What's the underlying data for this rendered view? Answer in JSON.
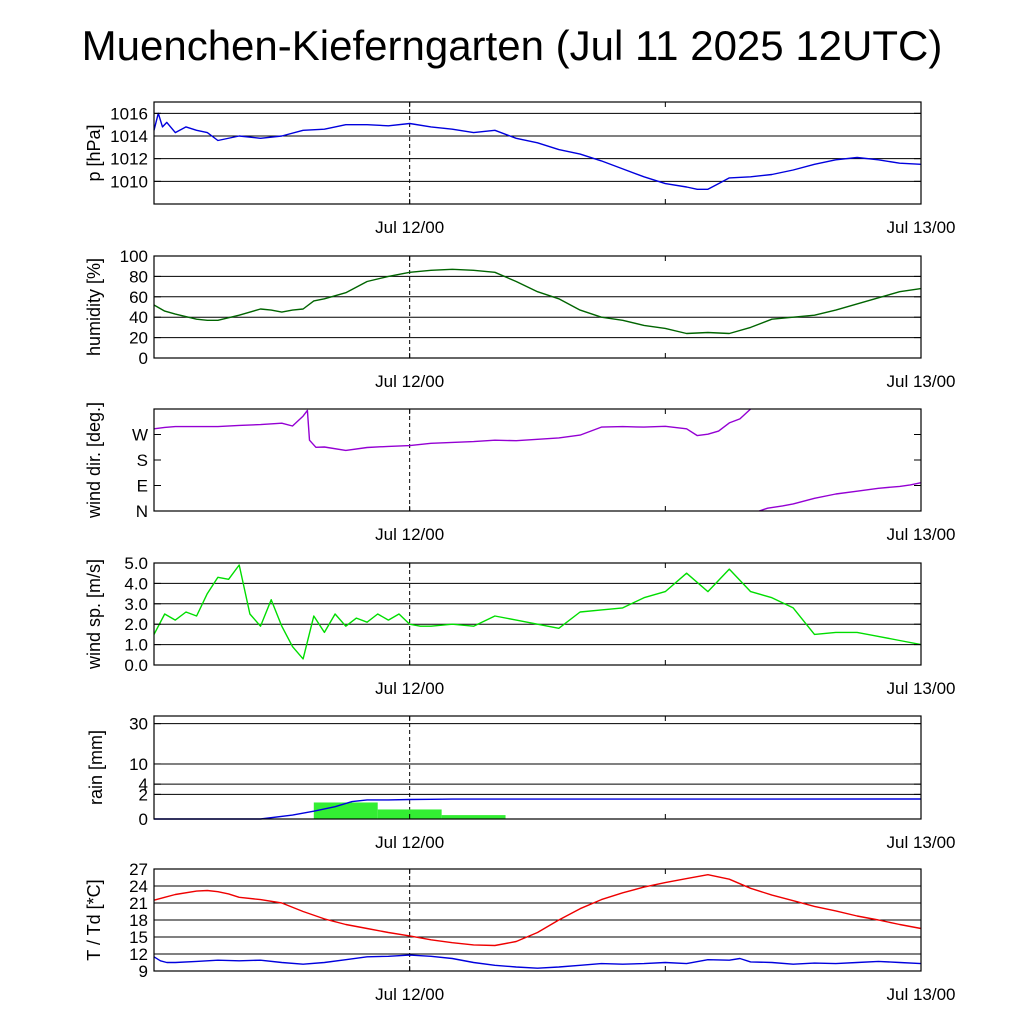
{
  "title": "Muenchen-Kieferngarten (Jul 11 2025 12UTC)",
  "x_tick_labels": [
    "Jul 12/00",
    "Jul 13/00"
  ],
  "x_axis": {
    "start": "Jul 11 12UTC",
    "end": "Jul 13 00UTC",
    "unit": "hours since Jul 11 12UTC",
    "range": [
      0,
      36
    ],
    "dashed_line_at": 12
  },
  "colors": {
    "pressure": "#0000dd",
    "humidity": "#006400",
    "wind_dir": "#9400d3",
    "wind_speed": "#00dd00",
    "rain_bar": "#33ee33",
    "rain_cum": "#0000dd",
    "temperature": "#ee0000",
    "dewpoint": "#0000dd"
  },
  "chart_data": [
    {
      "type": "line",
      "ylabel": "p [hPa]",
      "ylim": [
        1008,
        1017
      ],
      "yticks": [
        1010,
        1012,
        1014,
        1016
      ],
      "ytick_labels": [
        "1010",
        "1012",
        "1014",
        "1016"
      ],
      "grid": true,
      "series": [
        {
          "x": [
            0,
            0.2,
            0.4,
            0.6,
            1,
            1.5,
            2,
            2.5,
            3,
            4,
            5,
            6,
            7,
            8,
            9,
            10,
            11,
            12,
            13,
            14,
            15,
            16,
            17,
            18,
            19,
            20,
            21,
            22,
            23,
            24,
            25,
            25.5,
            26,
            26.5,
            27,
            28,
            29,
            30,
            31,
            32,
            33,
            34,
            35,
            36
          ],
          "y": [
            1014.5,
            1016,
            1014.8,
            1015.2,
            1014.3,
            1014.8,
            1014.5,
            1014.3,
            1013.6,
            1014,
            1013.8,
            1014,
            1014.5,
            1014.6,
            1015,
            1015,
            1014.9,
            1015.1,
            1014.8,
            1014.6,
            1014.3,
            1014.5,
            1013.8,
            1013.4,
            1012.8,
            1012.4,
            1011.8,
            1011.1,
            1010.4,
            1009.8,
            1009.5,
            1009.3,
            1009.3,
            1009.8,
            1010.3,
            1010.4,
            1010.6,
            1011,
            1011.5,
            1011.9,
            1012.1,
            1011.9,
            1011.6,
            1011.5
          ]
        }
      ]
    },
    {
      "type": "line",
      "ylabel": "humidity [%]",
      "ylim": [
        0,
        100
      ],
      "yticks": [
        0,
        20,
        40,
        60,
        80,
        100
      ],
      "ytick_labels": [
        "0",
        "20",
        "40",
        "60",
        "80",
        "100"
      ],
      "grid": true,
      "series": [
        {
          "x": [
            0,
            0.5,
            1,
            2,
            2.5,
            3,
            4,
            5,
            5.5,
            6,
            6.5,
            7,
            7.5,
            8,
            9,
            10,
            11,
            12,
            13,
            14,
            15,
            16,
            17,
            18,
            19,
            20,
            21,
            22,
            23,
            24,
            25,
            26,
            27,
            28,
            29,
            30,
            31,
            32,
            33,
            34,
            35,
            36
          ],
          "y": [
            52,
            46,
            43,
            38,
            37,
            37,
            42,
            48,
            47,
            45,
            47,
            48,
            56,
            58,
            64,
            75,
            80,
            84,
            86,
            87,
            86,
            84,
            75,
            65,
            58,
            47,
            40,
            37,
            32,
            29,
            24,
            25,
            24,
            30,
            38,
            40,
            42,
            47,
            53,
            59,
            65,
            68
          ]
        }
      ]
    },
    {
      "type": "line",
      "ylabel": "wind dir. [deg.]",
      "ylim": [
        0,
        360
      ],
      "yticks": [
        0,
        90,
        180,
        270
      ],
      "ytick_labels": [
        "N",
        "E",
        "S",
        "W"
      ],
      "grid": false,
      "series": [
        {
          "x": [
            0,
            0.5,
            1,
            2,
            3,
            4,
            5,
            6,
            6.5,
            7,
            7.2,
            7.3,
            7.6,
            8,
            9,
            10,
            11,
            12,
            13,
            14,
            15,
            16,
            17,
            18,
            19,
            20,
            21,
            22,
            23,
            24,
            25,
            25.5,
            26,
            26.5,
            27,
            27.5,
            28
          ],
          "y": [
            290,
            295,
            298,
            298,
            298,
            302,
            305,
            310,
            300,
            335,
            355,
            250,
            225,
            226,
            214,
            224,
            228,
            231,
            239,
            242,
            245,
            250,
            248,
            253,
            258,
            268,
            296,
            298,
            296,
            299,
            290,
            266,
            271,
            282,
            311,
            325,
            360
          ]
        },
        {
          "x": [
            28.4,
            28.8,
            29.5,
            30,
            31,
            32,
            33,
            34,
            35,
            35.5,
            36
          ],
          "y": [
            0,
            10,
            18,
            25,
            45,
            60,
            70,
            80,
            87,
            92,
            100
          ]
        }
      ]
    },
    {
      "type": "line",
      "ylabel": "wind sp. [m/s]",
      "ylim": [
        0,
        5
      ],
      "yticks": [
        0,
        1,
        2,
        3,
        4,
        5
      ],
      "ytick_labels": [
        "0.0",
        "1.0",
        "2.0",
        "3.0",
        "4.0",
        "5.0"
      ],
      "grid": true,
      "series": [
        {
          "x": [
            0,
            0.5,
            1,
            1.5,
            2,
            2.5,
            3,
            3.5,
            4,
            4.5,
            5,
            5.5,
            6,
            6.5,
            7,
            7.5,
            8,
            8.5,
            9,
            9.5,
            10,
            10.5,
            11,
            11.5,
            12,
            12.5,
            13,
            14,
            15,
            16,
            17,
            18,
            19,
            20,
            21,
            22,
            23,
            24,
            25,
            26,
            27,
            28,
            29,
            30,
            31,
            32,
            33,
            34,
            35,
            36
          ],
          "y": [
            1.5,
            2.5,
            2.2,
            2.6,
            2.4,
            3.5,
            4.3,
            4.2,
            4.9,
            2.5,
            1.9,
            3.2,
            1.9,
            0.9,
            0.3,
            2.4,
            1.6,
            2.5,
            1.9,
            2.3,
            2.1,
            2.5,
            2.2,
            2.5,
            2.0,
            1.9,
            1.9,
            2.0,
            1.9,
            2.4,
            2.2,
            2.0,
            1.8,
            2.6,
            2.7,
            2.8,
            3.3,
            3.6,
            4.5,
            3.6,
            4.7,
            3.6,
            3.3,
            2.8,
            1.5,
            1.6,
            1.6,
            1.4,
            1.2,
            1.0
          ]
        }
      ]
    },
    {
      "type": "bar+line",
      "ylabel": "rain [mm]",
      "ylim": [
        0,
        35
      ],
      "yticks": [
        0,
        2,
        4,
        10,
        30
      ],
      "ytick_labels": [
        "0",
        "2",
        "4",
        "10",
        "30"
      ],
      "grid": true,
      "bars": [
        {
          "x0": 7.5,
          "x1": 10.5,
          "value": 0.9
        },
        {
          "x0": 10.5,
          "x1": 13.5,
          "value": 0.3
        },
        {
          "x0": 13.5,
          "x1": 16.5,
          "value": 0.05
        }
      ],
      "series": [
        {
          "x": [
            0,
            5,
            6.5,
            7.5,
            8.5,
            9.3,
            10,
            11,
            12,
            13,
            14,
            20,
            36
          ],
          "y": [
            0,
            0,
            0.05,
            0.2,
            0.5,
            1.0,
            1.2,
            1.2,
            1.25,
            1.28,
            1.3,
            1.3,
            1.32
          ]
        }
      ]
    },
    {
      "type": "line",
      "ylabel": "T / Td [*C]",
      "ylim": [
        9,
        27
      ],
      "yticks": [
        9,
        12,
        15,
        18,
        21,
        24,
        27
      ],
      "ytick_labels": [
        "9",
        "12",
        "15",
        "18",
        "21",
        "24",
        "27"
      ],
      "grid": true,
      "series": [
        {
          "x": [
            0,
            0.5,
            1,
            2,
            2.5,
            3,
            3.5,
            4,
            5,
            6,
            7,
            8,
            9,
            10,
            11,
            12,
            13,
            14,
            15,
            16,
            17,
            18,
            19,
            20,
            21,
            22,
            23,
            24,
            25,
            26,
            27,
            28,
            29,
            30,
            31,
            32,
            33,
            34,
            35,
            36
          ],
          "y": [
            21.5,
            22,
            22.5,
            23.1,
            23.2,
            23.0,
            22.6,
            22.0,
            21.6,
            21.0,
            19.5,
            18.2,
            17.2,
            16.5,
            15.8,
            15.2,
            14.5,
            14.0,
            13.6,
            13.5,
            14.2,
            15.8,
            18.0,
            20.0,
            21.6,
            22.8,
            23.8,
            24.6,
            25.3,
            26.0,
            25.2,
            23.6,
            22.4,
            21.4,
            20.4,
            19.6,
            18.7,
            18.0,
            17.2,
            16.5
          ]
        },
        {
          "x": [
            0,
            0.3,
            0.6,
            1,
            2,
            3,
            4,
            5,
            6,
            7,
            8,
            9,
            10,
            11,
            12,
            13,
            14,
            15,
            16,
            17,
            18,
            19,
            20,
            21,
            22,
            23,
            24,
            25,
            26,
            27,
            27.5,
            28,
            29,
            30,
            31,
            32,
            33,
            34,
            35,
            36
          ],
          "y": [
            11.5,
            10.8,
            10.5,
            10.5,
            10.7,
            10.9,
            10.8,
            10.9,
            10.5,
            10.2,
            10.5,
            11.0,
            11.5,
            11.6,
            11.8,
            11.6,
            11.2,
            10.5,
            10.0,
            9.7,
            9.5,
            9.7,
            10.0,
            10.3,
            10.2,
            10.3,
            10.5,
            10.3,
            11.0,
            10.9,
            11.2,
            10.6,
            10.5,
            10.2,
            10.4,
            10.3,
            10.5,
            10.7,
            10.5,
            10.3
          ]
        }
      ]
    }
  ]
}
